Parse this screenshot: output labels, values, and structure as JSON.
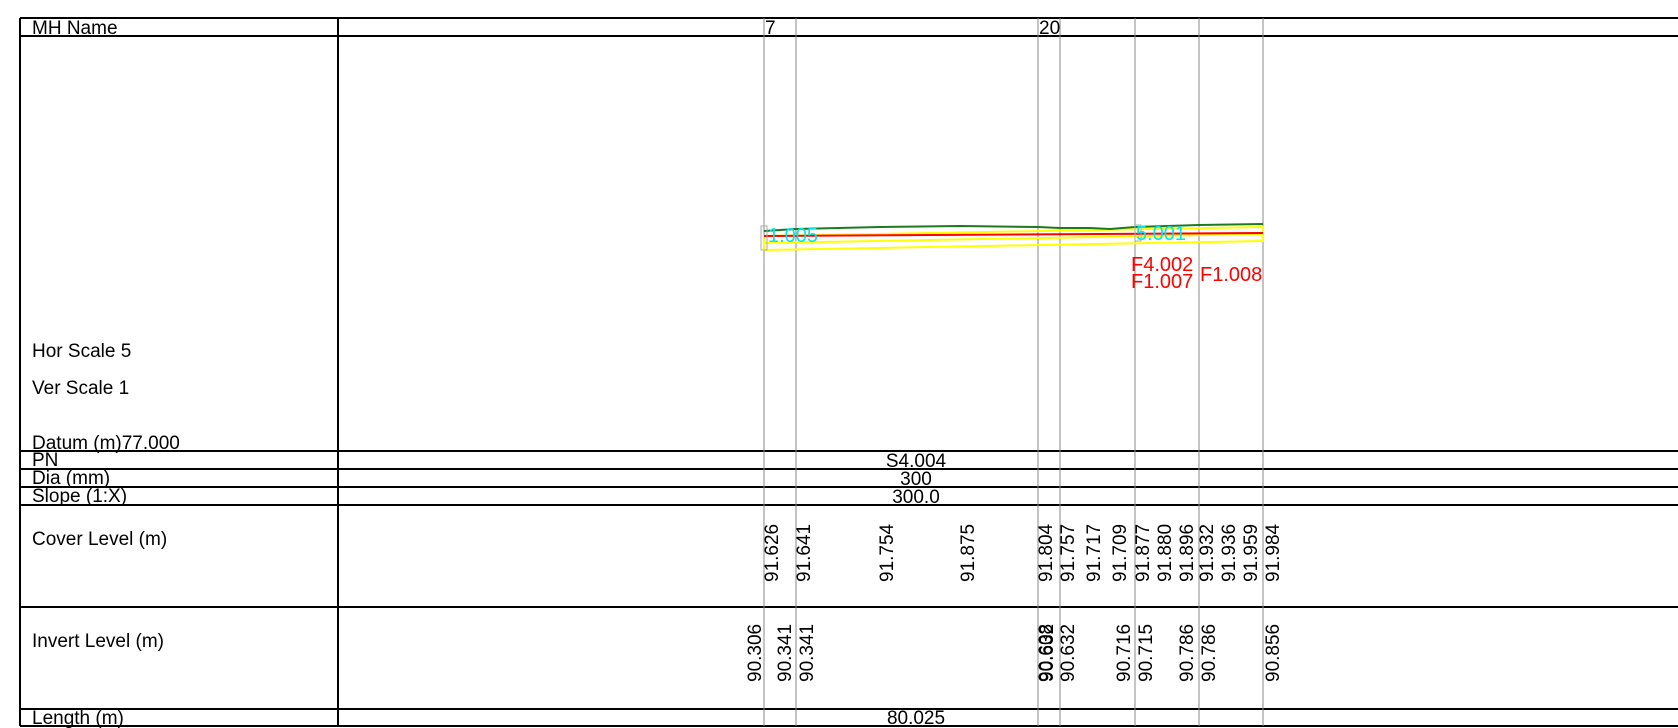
{
  "rows": {
    "mh_name": "MH Name",
    "hor_scale": "Hor Scale 5",
    "ver_scale": "Ver Scale 1",
    "datum": "Datum (m)77.000",
    "pn": "PN",
    "dia": "Dia (mm)",
    "slope": "Slope (1:X)",
    "cover_level": "Cover Level (m)",
    "invert_level": "Invert Level (m)",
    "length": "Length (m)"
  },
  "manholes": [
    "7",
    "20"
  ],
  "pipe": {
    "pn": "S4.004",
    "dia": "300",
    "slope": "300.0",
    "length": "80.025"
  },
  "profile_labels": {
    "cyan": [
      "1.005",
      "5.001"
    ],
    "red": [
      "F4.002",
      "F1.007",
      "F1.008"
    ]
  },
  "cover_levels": [
    "91.626",
    "91.641",
    "91.754",
    "91.875",
    "91.804",
    "91.757",
    "91.717",
    "91.709",
    "91.877",
    "91.880",
    "91.896",
    "91.932",
    "91.936",
    "91.959",
    "91.984"
  ],
  "invert_levels": [
    "90.306",
    "90.341",
    "90.341",
    "90.608",
    "90.632",
    "90.632",
    "90.716",
    "90.715",
    "90.786",
    "90.786",
    "90.856"
  ],
  "colors": {
    "ground": "#1e7a1e",
    "pipe": "#ff0000",
    "pipe_band": "#ffff00",
    "label_cyan": "#00e5ee",
    "label_red": "#ff0000",
    "grid": "#000000",
    "station": "#888888"
  }
}
